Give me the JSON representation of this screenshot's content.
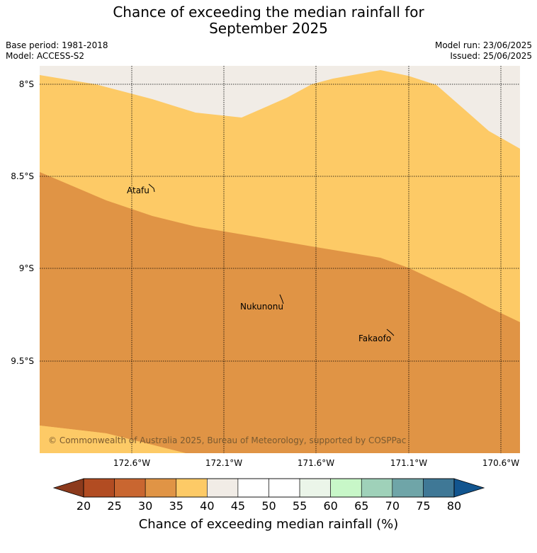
{
  "title_line1": "Chance of exceeding the median rainfall for",
  "title_line2": "September 2025",
  "base_period": "Base period: 1981-2018",
  "model": "Model: ACCESS-S2",
  "model_run": "Model run: 23/06/2025",
  "issued": "Issued: 25/06/2025",
  "lat_labels": [
    "8°S",
    "8.5°S",
    "9°S",
    "9.5°S"
  ],
  "lon_labels": [
    "172.6°W",
    "172.1°W",
    "171.6°W",
    "171.1°W",
    "170.6°W"
  ],
  "places": [
    "Atafu",
    "Nukunonu",
    "Fakaofo"
  ],
  "copyright": "© Commonwealth of Australia 2025, Bureau of Meteorology, supported by COSPPac",
  "colorbar": {
    "title": "Chance of exceeding median rainfall (%)",
    "ticks": [
      "20",
      "25",
      "30",
      "35",
      "40",
      "45",
      "50",
      "55",
      "60",
      "65",
      "70",
      "75",
      "80"
    ],
    "colors": {
      "under": "#8c3a1c",
      "bins": [
        "#b24c22",
        "#c96630",
        "#e09445",
        "#fdca66",
        "#f1ece6",
        "#ffffff",
        "#ffffff",
        "#ebf5e9",
        "#c8f7c8",
        "#9fd1b9",
        "#6fa5a8",
        "#3f7896"
      ],
      "over": "#12558f"
    }
  },
  "map_colors": {
    "band_30_35": "#e09445",
    "band_35_40": "#fdca66",
    "band_40_45": "#f1ece6"
  }
}
